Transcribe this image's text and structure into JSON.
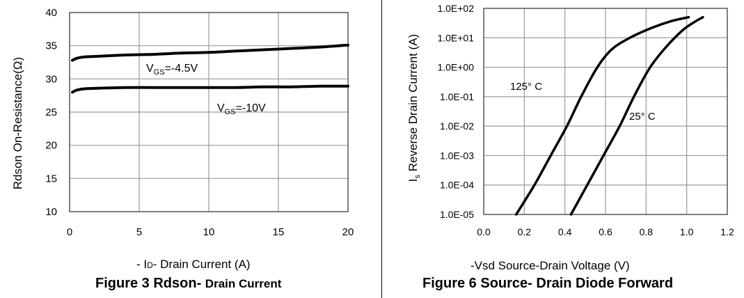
{
  "chart_data": [
    {
      "type": "line",
      "figure_caption_main": "Figure 3 Rdson-",
      "figure_caption_tail": "Drain Current",
      "xlabel_prefix": "- I",
      "xlabel_sub": "D",
      "xlabel_suffix": "- Drain Current (A)",
      "ylabel": "Rdson On-Resistance(Ω)",
      "xlim": [
        0,
        20
      ],
      "ylim": [
        10,
        40
      ],
      "x_ticks": [
        "0",
        "5",
        "10",
        "15",
        "20"
      ],
      "y_ticks": [
        "10",
        "15",
        "20",
        "25",
        "30",
        "35",
        "40"
      ],
      "grid": true,
      "series": [
        {
          "name": "VGS=-4.5V",
          "label_main": "V",
          "label_sub": "GS",
          "label_tail": "=-4.5V",
          "x": [
            0.2,
            0.5,
            1,
            2,
            4,
            6,
            8,
            10,
            12,
            14,
            16,
            18,
            20
          ],
          "y": [
            32.8,
            33.1,
            33.3,
            33.4,
            33.6,
            33.7,
            33.9,
            34.0,
            34.2,
            34.4,
            34.6,
            34.8,
            35.1
          ]
        },
        {
          "name": "VGS=-10V",
          "label_main": "V",
          "label_sub": "GS",
          "label_tail": "=-10V",
          "x": [
            0.2,
            0.5,
            1,
            2,
            4,
            6,
            8,
            10,
            12,
            14,
            16,
            18,
            20
          ],
          "y": [
            28.0,
            28.3,
            28.5,
            28.6,
            28.7,
            28.7,
            28.7,
            28.7,
            28.7,
            28.8,
            28.8,
            28.9,
            28.9
          ]
        }
      ]
    },
    {
      "type": "line",
      "figure_caption_main": "Figure 6 Source- Drain Diode Forward",
      "xlabel": "-Vsd Source-Drain Voltage (V)",
      "ylabel_main": "I",
      "ylabel_sub": "s",
      "ylabel_tail": " Reverse Drain Current (A)",
      "xlim": [
        0.0,
        1.2
      ],
      "y_scale": "log",
      "ylim": [
        1e-05,
        100
      ],
      "x_ticks": [
        "0.0",
        "0.2",
        "0.4",
        "0.6",
        "0.8",
        "1.0",
        "1.2"
      ],
      "y_ticks": [
        "1.0E-05",
        "1.0E-04",
        "1.0E-03",
        "1.0E-02",
        "1.0E-01",
        "1.0E+00",
        "1.0E+01",
        "1.0E+02"
      ],
      "grid": true,
      "series": [
        {
          "name": "125° C",
          "label": "125°  C",
          "x": [
            0.16,
            0.25,
            0.33,
            0.41,
            0.48,
            0.56,
            0.63,
            0.72,
            0.83,
            0.93,
            1.01
          ],
          "y": [
            1e-05,
            0.0001,
            0.001,
            0.01,
            0.1,
            1.0,
            4.0,
            10.0,
            22.0,
            38.0,
            50.0
          ]
        },
        {
          "name": "25° C",
          "label": "25°  C",
          "x": [
            0.43,
            0.51,
            0.59,
            0.67,
            0.74,
            0.82,
            0.9,
            0.98,
            1.04,
            1.08
          ],
          "y": [
            1e-05,
            0.0001,
            0.001,
            0.01,
            0.1,
            1.0,
            5.0,
            18.0,
            35.0,
            50.0
          ]
        }
      ]
    }
  ]
}
